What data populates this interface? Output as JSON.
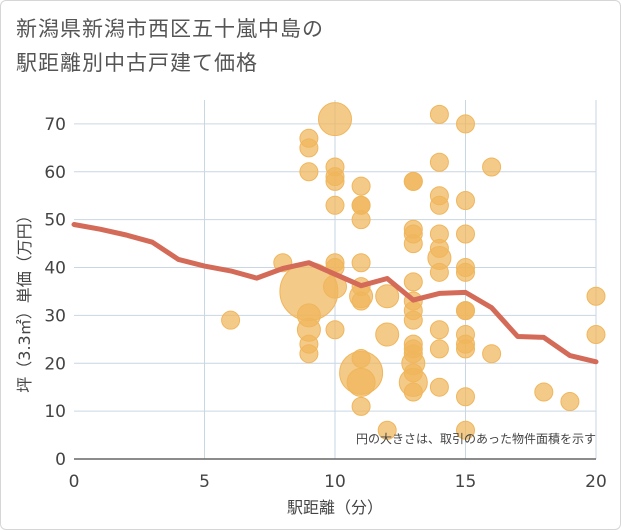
{
  "chart_data": {
    "type": "scatter",
    "title_line1": "新潟県新潟市西区五十嵐中島の",
    "title_line2": "駅距離別中古戸建て価格",
    "xlabel": "駅距離（分）",
    "ylabel": "坪（3.3㎡）単価（万円）",
    "xlim": [
      0,
      20
    ],
    "ylim": [
      0,
      75
    ],
    "x_ticks": [
      0,
      5,
      10,
      15,
      20
    ],
    "y_ticks": [
      0,
      10,
      20,
      30,
      40,
      50,
      60,
      70
    ],
    "note": "円の大きさは、取引のあった物件面積を示す",
    "colors": {
      "bubble": "#f0b65c",
      "line": "#d46a58",
      "grid": "#c9d6e3",
      "axis": "#666666"
    },
    "points": [
      {
        "x": 8,
        "y": 41,
        "s": 2
      },
      {
        "x": 9,
        "y": 35,
        "s": 10
      },
      {
        "x": 9,
        "y": 67,
        "s": 2
      },
      {
        "x": 9,
        "y": 65,
        "s": 2
      },
      {
        "x": 9,
        "y": 60,
        "s": 2
      },
      {
        "x": 9,
        "y": 30,
        "s": 3
      },
      {
        "x": 9,
        "y": 27,
        "s": 3
      },
      {
        "x": 9,
        "y": 24,
        "s": 2
      },
      {
        "x": 9,
        "y": 22,
        "s": 2
      },
      {
        "x": 6,
        "y": 29,
        "s": 2
      },
      {
        "x": 10,
        "y": 71,
        "s": 5
      },
      {
        "x": 10,
        "y": 61,
        "s": 2
      },
      {
        "x": 10,
        "y": 59,
        "s": 2
      },
      {
        "x": 10,
        "y": 58,
        "s": 2
      },
      {
        "x": 10,
        "y": 53,
        "s": 2
      },
      {
        "x": 10,
        "y": 41,
        "s": 2
      },
      {
        "x": 10,
        "y": 40,
        "s": 2
      },
      {
        "x": 10,
        "y": 36,
        "s": 3
      },
      {
        "x": 10,
        "y": 27,
        "s": 2
      },
      {
        "x": 11,
        "y": 57,
        "s": 2
      },
      {
        "x": 11,
        "y": 53,
        "s": 2
      },
      {
        "x": 11,
        "y": 53,
        "s": 2
      },
      {
        "x": 11,
        "y": 50,
        "s": 2
      },
      {
        "x": 11,
        "y": 41,
        "s": 2
      },
      {
        "x": 11,
        "y": 36,
        "s": 2
      },
      {
        "x": 11,
        "y": 34,
        "s": 3
      },
      {
        "x": 11,
        "y": 33,
        "s": 2
      },
      {
        "x": 11,
        "y": 21,
        "s": 2
      },
      {
        "x": 11,
        "y": 18,
        "s": 7
      },
      {
        "x": 11,
        "y": 16,
        "s": 4
      },
      {
        "x": 11,
        "y": 11,
        "s": 2
      },
      {
        "x": 12,
        "y": 34,
        "s": 3
      },
      {
        "x": 12,
        "y": 26,
        "s": 3
      },
      {
        "x": 12,
        "y": 6,
        "s": 2
      },
      {
        "x": 13,
        "y": 58,
        "s": 2
      },
      {
        "x": 13,
        "y": 58,
        "s": 2
      },
      {
        "x": 13,
        "y": 48,
        "s": 2
      },
      {
        "x": 13,
        "y": 47,
        "s": 2
      },
      {
        "x": 13,
        "y": 45,
        "s": 2
      },
      {
        "x": 13,
        "y": 37,
        "s": 2
      },
      {
        "x": 13,
        "y": 33,
        "s": 2
      },
      {
        "x": 13,
        "y": 31,
        "s": 2
      },
      {
        "x": 13,
        "y": 29,
        "s": 2
      },
      {
        "x": 13,
        "y": 24,
        "s": 2
      },
      {
        "x": 13,
        "y": 23,
        "s": 2
      },
      {
        "x": 13,
        "y": 22,
        "s": 2
      },
      {
        "x": 13,
        "y": 20,
        "s": 3
      },
      {
        "x": 13,
        "y": 18,
        "s": 2
      },
      {
        "x": 13,
        "y": 16,
        "s": 4
      },
      {
        "x": 13,
        "y": 14,
        "s": 2
      },
      {
        "x": 14,
        "y": 72,
        "s": 2
      },
      {
        "x": 14,
        "y": 62,
        "s": 2
      },
      {
        "x": 14,
        "y": 55,
        "s": 2
      },
      {
        "x": 14,
        "y": 53,
        "s": 2
      },
      {
        "x": 14,
        "y": 47,
        "s": 2
      },
      {
        "x": 14,
        "y": 44,
        "s": 2
      },
      {
        "x": 14,
        "y": 42,
        "s": 3
      },
      {
        "x": 14,
        "y": 39,
        "s": 2
      },
      {
        "x": 14,
        "y": 27,
        "s": 2
      },
      {
        "x": 14,
        "y": 23,
        "s": 2
      },
      {
        "x": 14,
        "y": 15,
        "s": 2
      },
      {
        "x": 15,
        "y": 70,
        "s": 2
      },
      {
        "x": 15,
        "y": 54,
        "s": 2
      },
      {
        "x": 15,
        "y": 47,
        "s": 2
      },
      {
        "x": 15,
        "y": 40,
        "s": 2
      },
      {
        "x": 15,
        "y": 39,
        "s": 2
      },
      {
        "x": 15,
        "y": 31,
        "s": 2
      },
      {
        "x": 15,
        "y": 31,
        "s": 2
      },
      {
        "x": 15,
        "y": 26,
        "s": 2
      },
      {
        "x": 15,
        "y": 24,
        "s": 2
      },
      {
        "x": 15,
        "y": 23,
        "s": 2
      },
      {
        "x": 15,
        "y": 13,
        "s": 2
      },
      {
        "x": 15,
        "y": 6,
        "s": 2
      },
      {
        "x": 16,
        "y": 61,
        "s": 2
      },
      {
        "x": 16,
        "y": 22,
        "s": 2
      },
      {
        "x": 18,
        "y": 14,
        "s": 2
      },
      {
        "x": 19,
        "y": 12,
        "s": 2
      },
      {
        "x": 20,
        "y": 34,
        "s": 2
      },
      {
        "x": 20,
        "y": 26,
        "s": 2
      }
    ],
    "trend": {
      "x": [
        0,
        1,
        2,
        3,
        4,
        5,
        6,
        7,
        8,
        9,
        10,
        11,
        12,
        13,
        14,
        15,
        16,
        17,
        18,
        19,
        20
      ],
      "y": [
        49,
        48,
        46.8,
        45.3,
        41.7,
        40.3,
        39.3,
        37.8,
        39.8,
        41,
        38.6,
        36.2,
        37.7,
        33.2,
        34.6,
        34.8,
        31.6,
        25.6,
        25.4,
        21.6,
        20.3
      ]
    }
  }
}
